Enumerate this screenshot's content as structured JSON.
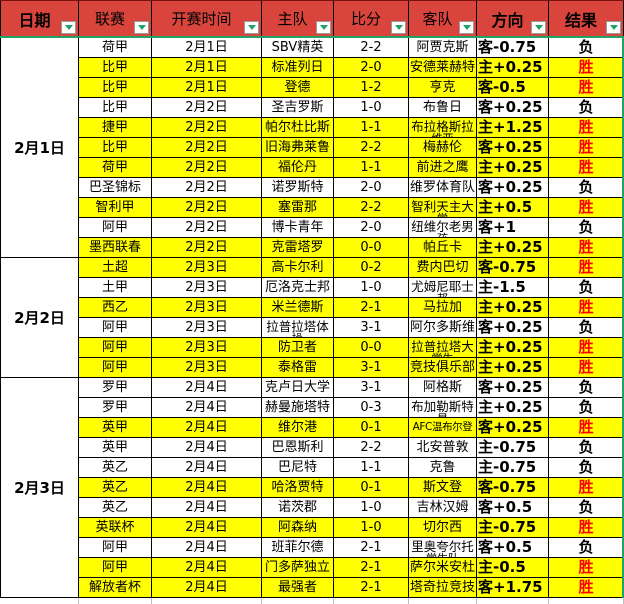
{
  "colors": {
    "header_bg": "#d9453c",
    "win_row_bg": "#ffff00",
    "win_text_red": "#ff0000",
    "accent_green": "#21a366",
    "grid_black": "#000000"
  },
  "columns": [
    {
      "key": "date",
      "label": "日期",
      "bold": true
    },
    {
      "key": "league",
      "label": "联赛",
      "bold": false
    },
    {
      "key": "time",
      "label": "开赛时间",
      "bold": false
    },
    {
      "key": "home",
      "label": "主队",
      "bold": false
    },
    {
      "key": "score",
      "label": "比分",
      "bold": false
    },
    {
      "key": "away",
      "label": "客队",
      "bold": false
    },
    {
      "key": "dir",
      "label": "方向",
      "bold": true
    },
    {
      "key": "result",
      "label": "结果",
      "bold": true
    }
  ],
  "groups": [
    {
      "date": "2月1日",
      "rows": [
        {
          "league": "荷甲",
          "time": "2月1日",
          "home": "SBV精英",
          "score": "2-2",
          "away": "阿贾克斯",
          "direction": "客-0.75",
          "result": "负",
          "win": false
        },
        {
          "league": "比甲",
          "time": "2月1日",
          "home": "标准列日",
          "score": "2-0",
          "away": "安德莱赫特",
          "direction": "主+0.25",
          "result": "胜",
          "win": true
        },
        {
          "league": "比甲",
          "time": "2月1日",
          "home": "登德",
          "score": "1-2",
          "away": "亨克",
          "direction": "客-0.5",
          "result": "胜",
          "win": true
        },
        {
          "league": "比甲",
          "time": "2月2日",
          "home": "圣吉罗斯",
          "score": "1-0",
          "away": "布鲁日",
          "direction": "客+0.25",
          "result": "负",
          "win": false
        },
        {
          "league": "捷甲",
          "time": "2月2日",
          "home": "帕尔杜比斯",
          "score": "1-1",
          "away": "布拉格斯拉",
          "away2": "维亚",
          "direction": "主+1.25",
          "result": "胜",
          "win": true
        },
        {
          "league": "比甲",
          "time": "2月2日",
          "home": "旧海弗莱鲁",
          "score": "2-2",
          "away": "梅赫伦",
          "direction": "客+0.25",
          "result": "胜",
          "win": true
        },
        {
          "league": "荷甲",
          "time": "2月2日",
          "home": "福伦丹",
          "score": "1-1",
          "away": "前进之鹰",
          "direction": "主+0.25",
          "result": "胜",
          "win": true
        },
        {
          "league": "巴圣锦标",
          "time": "2月2日",
          "home": "诺罗斯特",
          "score": "2-0",
          "away": "维罗体育队",
          "direction": "客+0.25",
          "result": "负",
          "win": false
        },
        {
          "league": "智利甲",
          "time": "2月2日",
          "home": "塞雷那",
          "score": "2-2",
          "away": "智利天主大",
          "away2": "学",
          "direction": "主+0.5",
          "result": "胜",
          "win": true
        },
        {
          "league": "阿甲",
          "time": "2月2日",
          "home": "博卡青年",
          "score": "2-0",
          "away": "纽维尔老男",
          "away2": "孩",
          "direction": "客+1",
          "result": "负",
          "win": false
        },
        {
          "league": "墨西联春",
          "time": "2月2日",
          "home": "克雷塔罗",
          "score": "0-0",
          "away": "帕丘卡",
          "direction": "主+0.25",
          "result": "胜",
          "win": true
        }
      ]
    },
    {
      "date": "2月2日",
      "rows": [
        {
          "league": "土超",
          "time": "2月3日",
          "home": "高卡尔利",
          "score": "0-2",
          "away": "费内巴切",
          "direction": "客-0.75",
          "result": "胜",
          "win": true
        },
        {
          "league": "土甲",
          "time": "2月3日",
          "home": "厄洛克士邦",
          "score": "1-0",
          "away": "尤姆尼耶士",
          "away2": "邦",
          "direction": "主-1.5",
          "result": "负",
          "win": false
        },
        {
          "league": "西乙",
          "time": "2月3日",
          "home": "米兰德斯",
          "score": "2-1",
          "away": "马拉加",
          "direction": "主+0.25",
          "result": "胜",
          "win": true
        },
        {
          "league": "阿甲",
          "time": "2月3日",
          "home": "拉普拉塔体",
          "home2": "操",
          "score": "3-1",
          "away": "阿尔多斯维",
          "direction": "客+0.25",
          "result": "负",
          "win": false
        },
        {
          "league": "阿甲",
          "time": "2月3日",
          "home": "防卫者",
          "score": "0-0",
          "away": "拉普拉塔大",
          "away2": "学生",
          "direction": "主+0.25",
          "result": "胜",
          "win": true
        },
        {
          "league": "阿甲",
          "time": "2月3日",
          "home": "泰格雷",
          "score": "3-1",
          "away": "竞技俱乐部",
          "direction": "主+0.25",
          "result": "胜",
          "win": true
        }
      ]
    },
    {
      "date": "2月3日",
      "rows": [
        {
          "league": "罗甲",
          "time": "2月4日",
          "home": "克卢日大学",
          "score": "3-1",
          "away": "阿格斯",
          "direction": "客+0.25",
          "result": "负",
          "win": false
        },
        {
          "league": "罗甲",
          "time": "2月4日",
          "home": "赫曼施塔特",
          "score": "0-3",
          "away": "布加勒斯特",
          "away2": "星",
          "direction": "主+0.25",
          "result": "负",
          "win": false
        },
        {
          "league": "英甲",
          "time": "2月4日",
          "home": "维尔港",
          "score": "0-1",
          "away": "AFC温布尔登",
          "direction": "客+0.25",
          "result": "胜",
          "win": true
        },
        {
          "league": "英甲",
          "time": "2月4日",
          "home": "巴恩斯利",
          "score": "2-2",
          "away": "北安普敦",
          "direction": "主-0.75",
          "result": "负",
          "win": false
        },
        {
          "league": "英乙",
          "time": "2月4日",
          "home": "巴尼特",
          "score": "1-1",
          "away": "克鲁",
          "direction": "主-0.75",
          "result": "负",
          "win": false
        },
        {
          "league": "英乙",
          "time": "2月4日",
          "home": "哈洛贾特",
          "score": "0-1",
          "away": "斯文登",
          "direction": "客-0.75",
          "result": "胜",
          "win": true
        },
        {
          "league": "英乙",
          "time": "2月4日",
          "home": "诺茨郡",
          "score": "1-0",
          "away": "吉林汉姆",
          "direction": "客+0.5",
          "result": "负",
          "win": false
        },
        {
          "league": "英联杯",
          "time": "2月4日",
          "home": "阿森纳",
          "score": "1-0",
          "away": "切尔西",
          "direction": "主-0.75",
          "result": "胜",
          "win": true
        },
        {
          "league": "阿甲",
          "time": "2月4日",
          "home": "班菲尔德",
          "score": "2-1",
          "away": "里奥夸尔托",
          "away2": "学生队",
          "direction": "客+0.5",
          "result": "负",
          "win": false
        },
        {
          "league": "阿甲",
          "time": "2月4日",
          "home": "门多萨独立",
          "score": "2-1",
          "away": "萨尔米安杜",
          "direction": "主-0.5",
          "result": "胜",
          "win": true
        },
        {
          "league": "解放者杯",
          "time": "2月4日",
          "home": "最强者",
          "score": "2-1",
          "away": "塔奇拉竞技",
          "direction": "客+1.75",
          "result": "胜",
          "win": true
        }
      ]
    }
  ]
}
